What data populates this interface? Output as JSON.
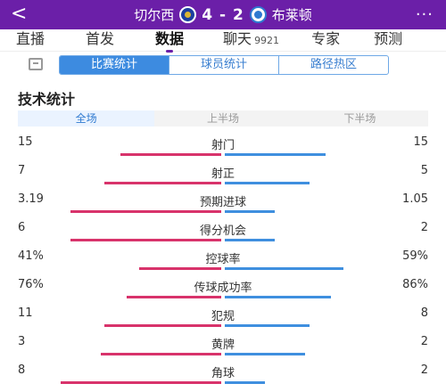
{
  "header": {
    "back": "<",
    "home_team": "切尔西",
    "away_team": "布莱顿",
    "score": "4 - 2",
    "menu": "···"
  },
  "tabs": [
    {
      "label": "直播",
      "count": ""
    },
    {
      "label": "首发",
      "count": ""
    },
    {
      "label": "数据",
      "count": "",
      "active": true
    },
    {
      "label": "聊天",
      "count": "9921"
    },
    {
      "label": "专家",
      "count": ""
    },
    {
      "label": "预测",
      "count": ""
    }
  ],
  "subtabs": [
    {
      "label": "比赛统计",
      "active": true
    },
    {
      "label": "球员统计"
    },
    {
      "label": "路径热区"
    }
  ],
  "section_title": "技术统计",
  "periods": [
    {
      "label": "全场",
      "active": true
    },
    {
      "label": "上半场"
    },
    {
      "label": "下半场"
    }
  ],
  "colors": {
    "header_bg": "#6b1fa8",
    "home_bar": "#d8336b",
    "away_bar": "#3f8fdf",
    "accent_blue": "#3d8be0"
  },
  "stats": [
    {
      "label": "射门",
      "home": "15",
      "away": "15",
      "home_share": 0.5,
      "away_share": 0.5
    },
    {
      "label": "射正",
      "home": "7",
      "away": "5",
      "home_share": 0.58,
      "away_share": 0.42
    },
    {
      "label": "预期进球",
      "home": "3.19",
      "away": "1.05",
      "home_share": 0.75,
      "away_share": 0.25
    },
    {
      "label": "得分机会",
      "home": "6",
      "away": "2",
      "home_share": 0.75,
      "away_share": 0.25
    },
    {
      "label": "控球率",
      "home": "41%",
      "away": "59%",
      "home_share": 0.41,
      "away_share": 0.59
    },
    {
      "label": "传球成功率",
      "home": "76%",
      "away": "86%",
      "home_share": 0.47,
      "away_share": 0.53
    },
    {
      "label": "犯规",
      "home": "11",
      "away": "8",
      "home_share": 0.58,
      "away_share": 0.42
    },
    {
      "label": "黄牌",
      "home": "3",
      "away": "2",
      "home_share": 0.6,
      "away_share": 0.4
    },
    {
      "label": "角球",
      "home": "8",
      "away": "2",
      "home_share": 0.8,
      "away_share": 0.2
    }
  ]
}
